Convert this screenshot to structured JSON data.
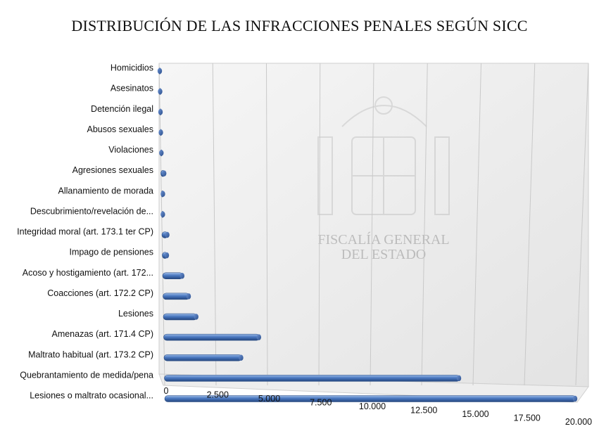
{
  "chart_data": {
    "type": "bar",
    "orientation": "horizontal",
    "title": "DISTRIBUCIÓN DE LAS INFRACCIONES PENALES SEGÚN SICC",
    "categories": [
      "Homicidios",
      "Asesinatos",
      "Detención ilegal",
      "Abusos sexuales",
      "Violaciones",
      "Agresiones sexuales",
      "Allanamiento de morada",
      "Descubrimiento/revelación de...",
      "Integridad moral (art. 173.1 ter CP)",
      "Impago de pensiones",
      "Acoso y hostigamiento (art. 172...",
      "Coacciones (art. 172.2 CP)",
      "Lesiones",
      "Amenazas (art. 171.4 CP)",
      "Maltrato habitual (art. 173.2 CP)",
      "Quebrantamiento de medida/pena",
      "Lesiones o maltrato ocasional..."
    ],
    "values": [
      10,
      20,
      40,
      60,
      80,
      200,
      120,
      100,
      300,
      260,
      1000,
      1300,
      1650,
      4700,
      3800,
      14400,
      20000
    ],
    "xlim": [
      0,
      20000
    ],
    "xticks": [
      "0",
      "2.500",
      "5.000",
      "7.500",
      "10.000",
      "12.500",
      "15.000",
      "17.500",
      "20.000"
    ],
    "grid": "vertical",
    "legend": "none",
    "bar_color": "#4a78c0",
    "watermark": "FISCALÍA GENERAL DEL ESTADO"
  }
}
